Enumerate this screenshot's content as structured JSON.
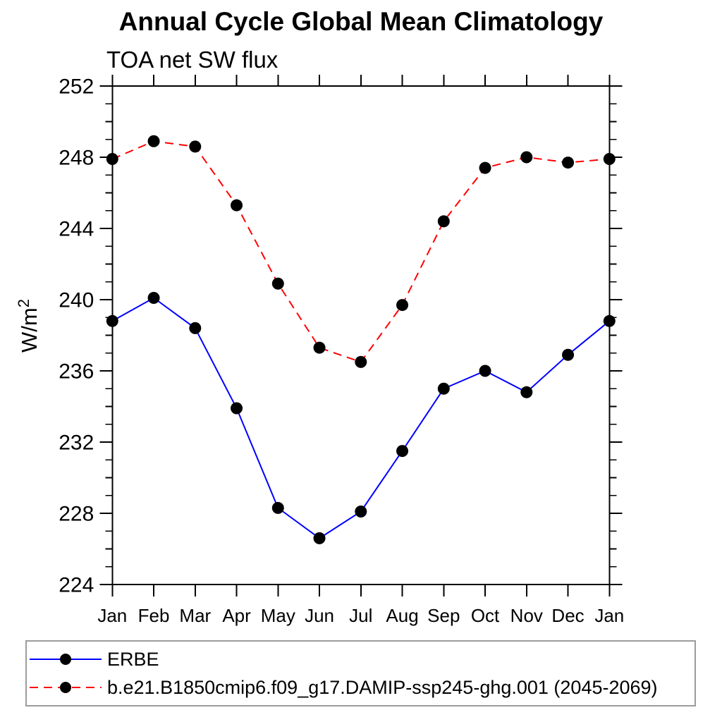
{
  "chart": {
    "title": "Annual Cycle Global Mean Climatology",
    "subtitle": "TOA net SW flux"
  },
  "chart_data": {
    "type": "line",
    "title": "Annual Cycle Global Mean Climatology",
    "subtitle": "TOA net SW flux",
    "xlabel": "",
    "ylabel": "W/m²",
    "ylabel_parts": {
      "base": "W/m",
      "sup": "2"
    },
    "categories": [
      "Jan",
      "Feb",
      "Mar",
      "Apr",
      "May",
      "Jun",
      "Jul",
      "Aug",
      "Sep",
      "Oct",
      "Nov",
      "Dec",
      "Jan"
    ],
    "series": [
      {
        "name": "ERBE",
        "color": "#0000ff",
        "line_style": "solid",
        "marker": "filled-circle",
        "marker_color": "#000000",
        "values": [
          238.8,
          240.1,
          238.4,
          233.9,
          228.3,
          226.6,
          228.1,
          231.5,
          235.0,
          236.0,
          234.8,
          236.9,
          238.8
        ]
      },
      {
        "name": "b.e21.B1850cmip6.f09_g17.DAMIP-ssp245-ghg.001 (2045-2069)",
        "color": "#ff0000",
        "line_style": "dashed",
        "marker": "filled-circle",
        "marker_color": "#000000",
        "values": [
          247.9,
          248.9,
          248.6,
          245.3,
          240.9,
          237.3,
          236.5,
          239.7,
          244.4,
          247.4,
          248.0,
          247.7,
          247.9
        ]
      }
    ],
    "ylim": [
      224,
      252
    ],
    "ytick_major_step": 4,
    "ytick_minor_step": 1,
    "ytick_labels": [
      "224",
      "228",
      "232",
      "236",
      "240",
      "244",
      "248",
      "252"
    ],
    "grid": false,
    "legend_position": "bottom-box",
    "axis_color": "#000000",
    "background_color": "#ffffff"
  }
}
